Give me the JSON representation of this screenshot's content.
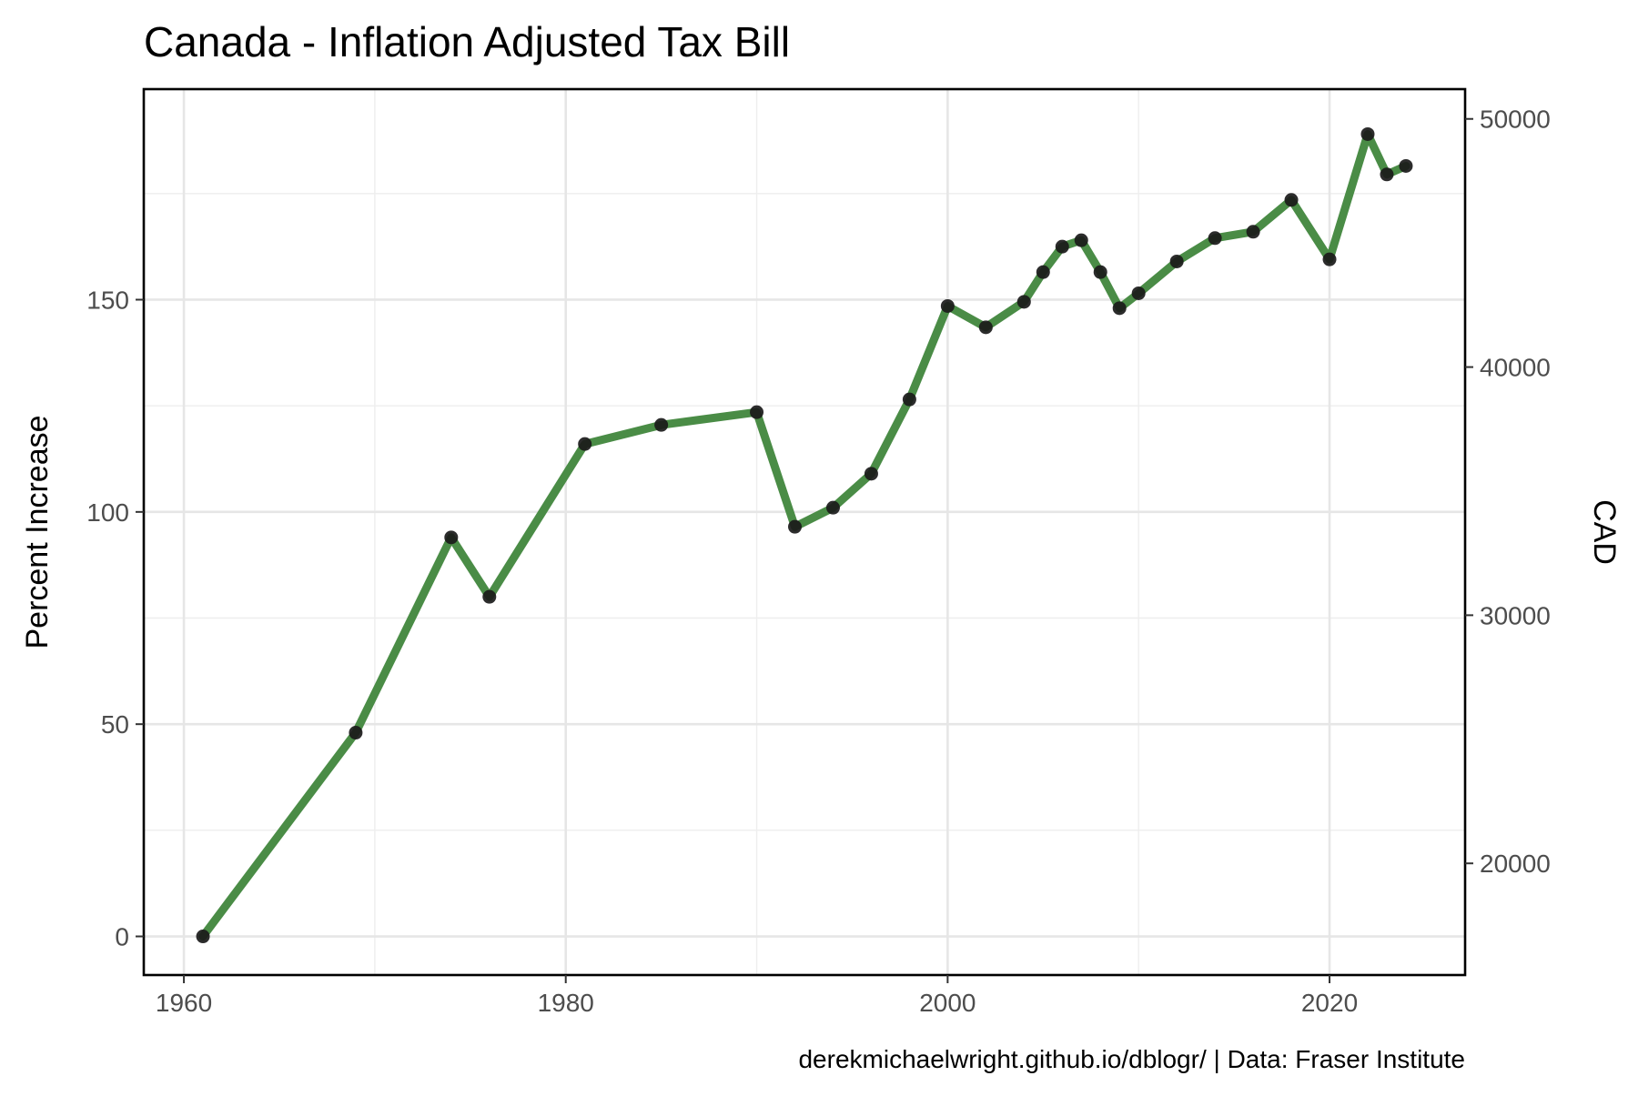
{
  "chart_data": {
    "type": "line",
    "title": "Canada - Inflation Adjusted Tax Bill",
    "xlabel": "",
    "ylabel": "Percent Increase",
    "y2label": "CAD",
    "caption": "derekmichaelwright.github.io/dblogr/ | Data: Fraser Institute",
    "xlim": [
      1957.9,
      2027.1
    ],
    "ylim": [
      -9.1,
      199.6
    ],
    "y2lim": [
      15500,
      51200
    ],
    "x_ticks": [
      1960,
      1980,
      2000,
      2020
    ],
    "x_tick_labels": [
      "1960",
      "1980",
      "2000",
      "2020"
    ],
    "x_minor_ticks": [
      1970,
      1990,
      2010
    ],
    "y_ticks": [
      0,
      50,
      100,
      150
    ],
    "y_tick_labels": [
      "0",
      "50",
      "100",
      "150"
    ],
    "y_minor_ticks": [
      25,
      75,
      125,
      175
    ],
    "y2_ticks": [
      20000,
      30000,
      40000,
      50000
    ],
    "y2_tick_labels": [
      "20000",
      "30000",
      "40000",
      "50000"
    ],
    "grid": true,
    "line_color": "#4a8c46",
    "point_color": "#1a1a1a",
    "series": [
      {
        "x": [
          1961,
          1969,
          1974,
          1976,
          1981,
          1985,
          1990,
          1992,
          1994,
          1996,
          1998,
          2000,
          2002,
          2004,
          2005,
          2006,
          2007,
          2008,
          2009,
          2010,
          2012,
          2014,
          2016,
          2018,
          2020,
          2022,
          2023,
          2024
        ],
        "y": [
          0,
          48,
          94,
          80,
          116,
          120.5,
          123.5,
          96.5,
          101,
          109,
          126.5,
          148.5,
          143.5,
          149.5,
          156.5,
          162.5,
          164,
          156.5,
          148,
          151.5,
          159,
          164.5,
          166,
          173.5,
          159.5,
          189,
          179.5,
          181.5
        ]
      }
    ]
  }
}
